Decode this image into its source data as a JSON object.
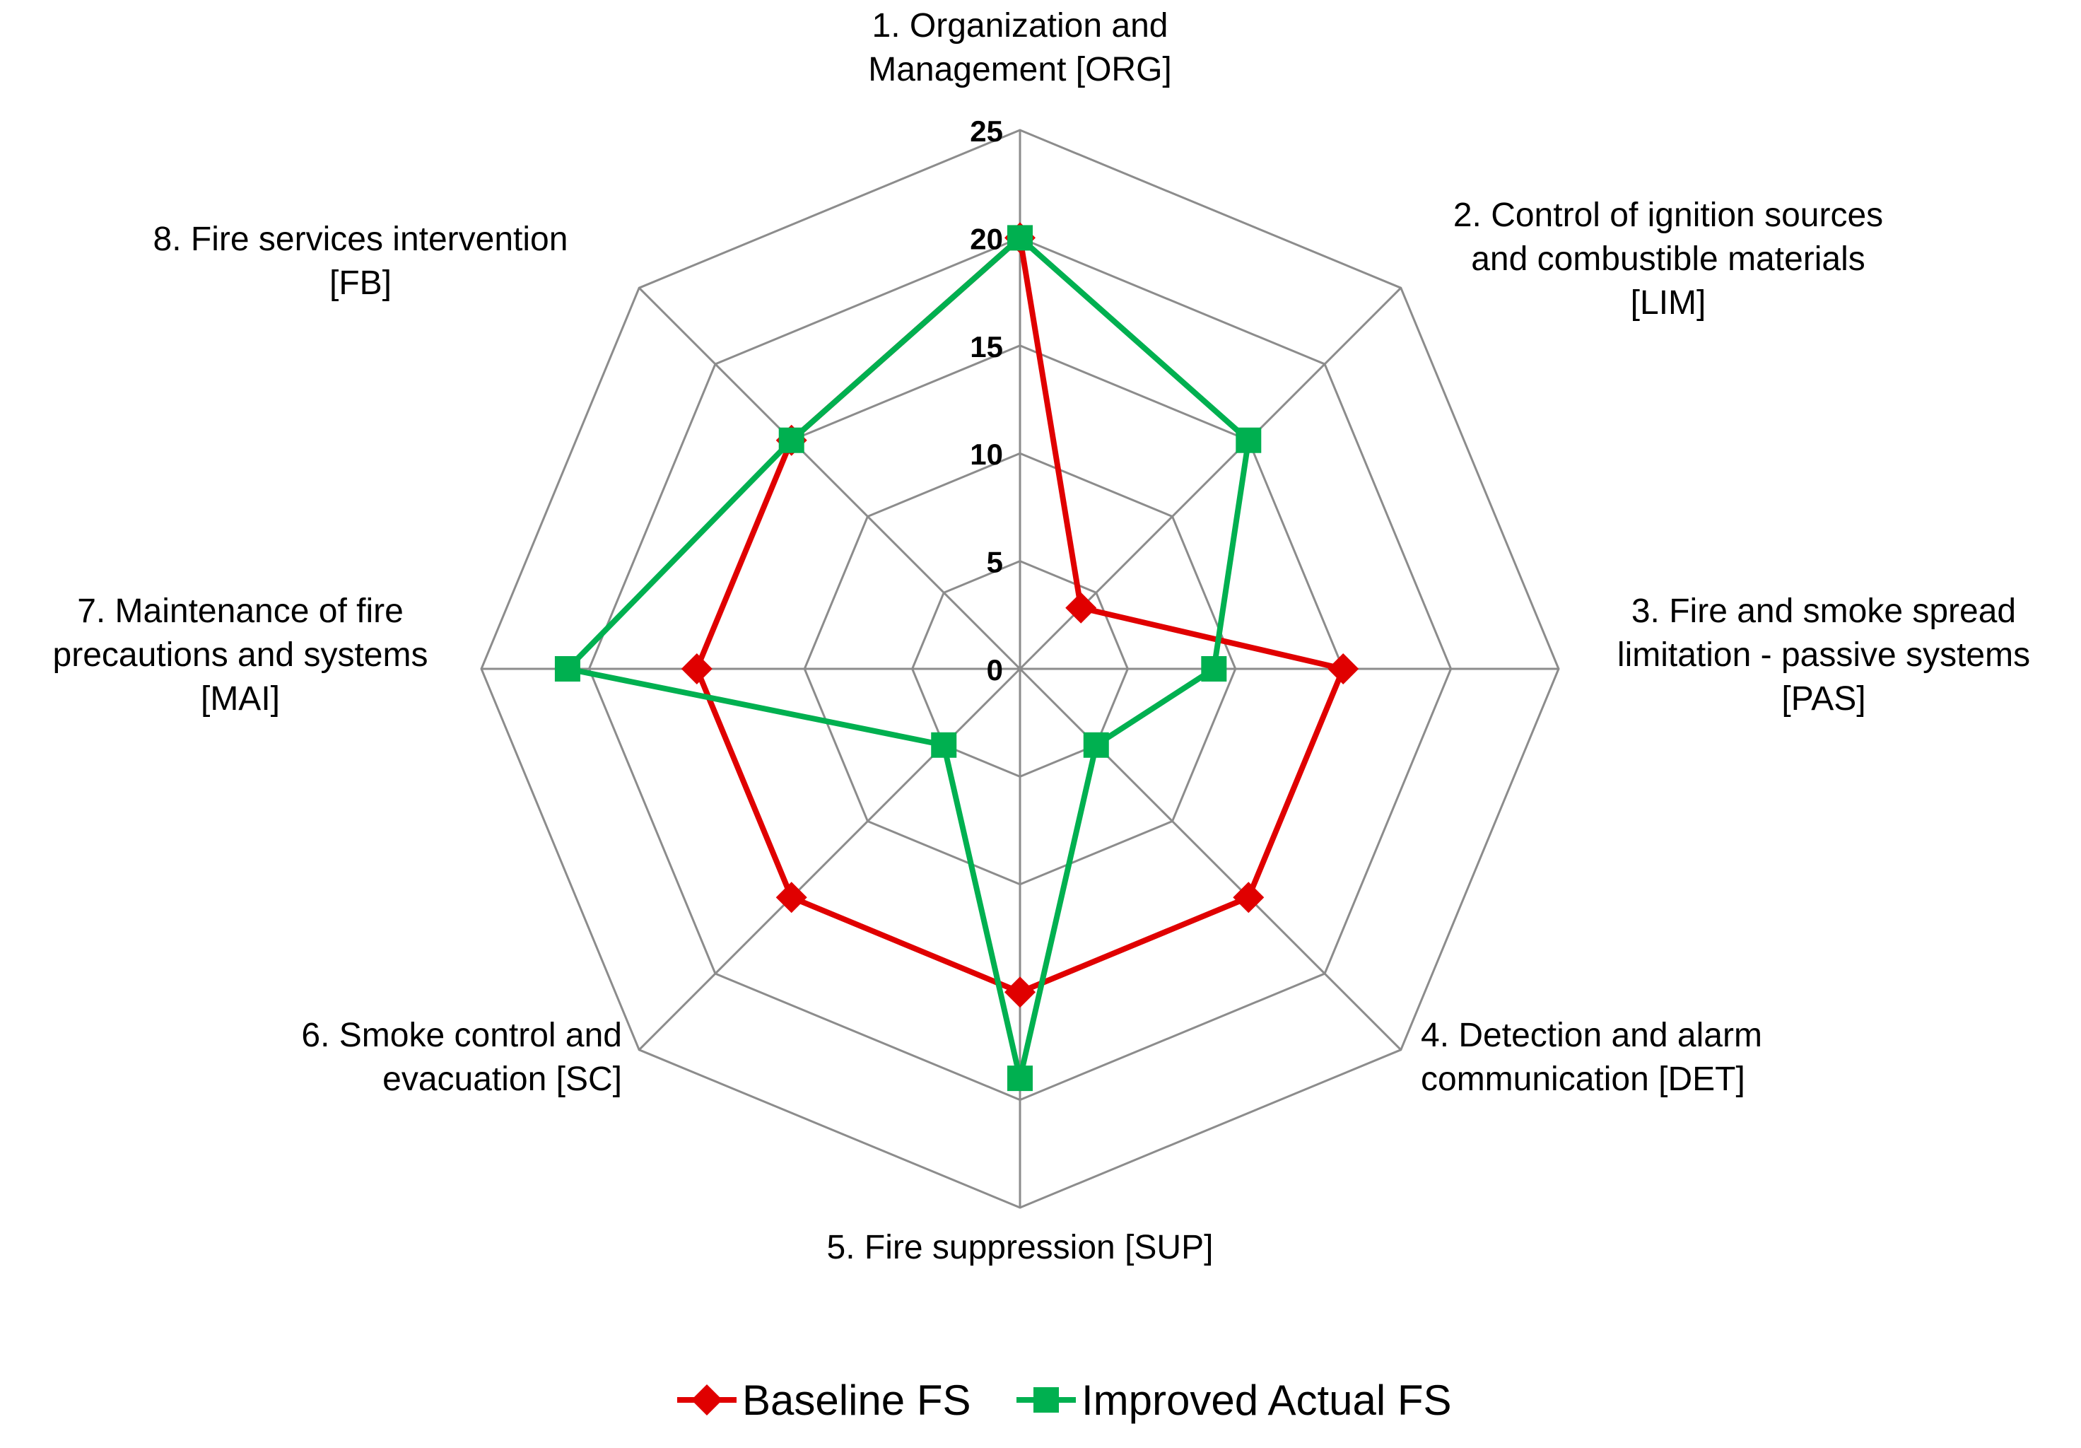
{
  "chart_data": {
    "type": "radar",
    "title": "",
    "categories": [
      [
        "1. Organization and",
        "Management [ORG]"
      ],
      [
        "2. Control of ignition sources",
        "and combustible materials",
        "[LIM]"
      ],
      [
        "3. Fire and smoke spread",
        "limitation - passive systems",
        "[PAS]"
      ],
      [
        "4. Detection and alarm",
        "communication [DET]"
      ],
      [
        "5. Fire suppression [SUP]"
      ],
      [
        "6. Smoke control and",
        "evacuation [SC]"
      ],
      [
        "7. Maintenance of fire",
        "precautions and systems",
        "[MAI]"
      ],
      [
        "8. Fire services intervention",
        "[FB]"
      ]
    ],
    "rlim": [
      0,
      25
    ],
    "ticks": [
      0,
      5,
      10,
      15,
      20,
      25
    ],
    "grid": true,
    "legend_position": "bottom",
    "series": [
      {
        "name": "Baseline FS",
        "color": "#e00000",
        "marker": "diamond",
        "values": [
          20,
          4,
          15,
          15,
          15,
          15,
          15,
          15
        ]
      },
      {
        "name": "Improved Actual FS",
        "color": "#00b050",
        "marker": "square",
        "values": [
          20,
          15,
          9,
          5,
          19,
          5,
          21,
          15
        ]
      }
    ]
  }
}
